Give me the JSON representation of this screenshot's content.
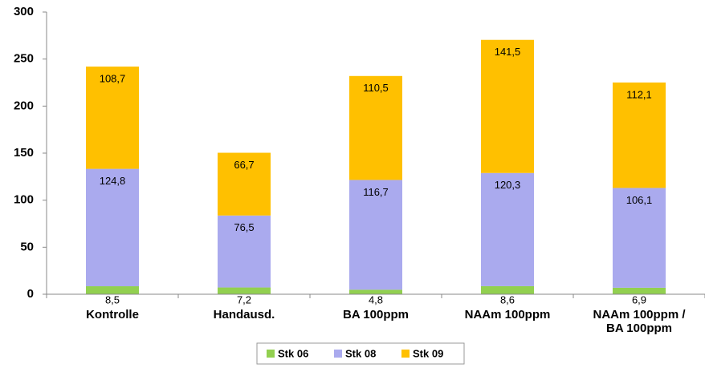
{
  "chart_data": {
    "type": "stacked_bar",
    "categories": [
      "Kontrolle",
      "Handausd.",
      "BA 100ppm",
      "NAAm 100ppm",
      "NAAm 100ppm /\nBA 100ppm"
    ],
    "series": [
      {
        "name": "Stk 06",
        "color": "#92d050",
        "values": [
          8.5,
          7.2,
          4.8,
          8.6,
          6.9
        ],
        "value_labels": [
          "8,5",
          "7,2",
          "4,8",
          "8,6",
          "6,9"
        ]
      },
      {
        "name": "Stk 08",
        "color": "#aaaaee",
        "values": [
          124.8,
          76.5,
          116.7,
          120.3,
          106.1
        ],
        "value_labels": [
          "124,8",
          "76,5",
          "116,7",
          "120,3",
          "106,1"
        ]
      },
      {
        "name": "Stk 09",
        "color": "#ffc000",
        "values": [
          108.7,
          66.7,
          110.5,
          141.5,
          112.1
        ],
        "value_labels": [
          "108,7",
          "66,7",
          "110,5",
          "141,5",
          "112,1"
        ]
      }
    ],
    "ylim": [
      0,
      300
    ],
    "yticks": [
      0,
      50,
      100,
      150,
      200,
      250,
      300
    ],
    "legend": "bottom"
  }
}
